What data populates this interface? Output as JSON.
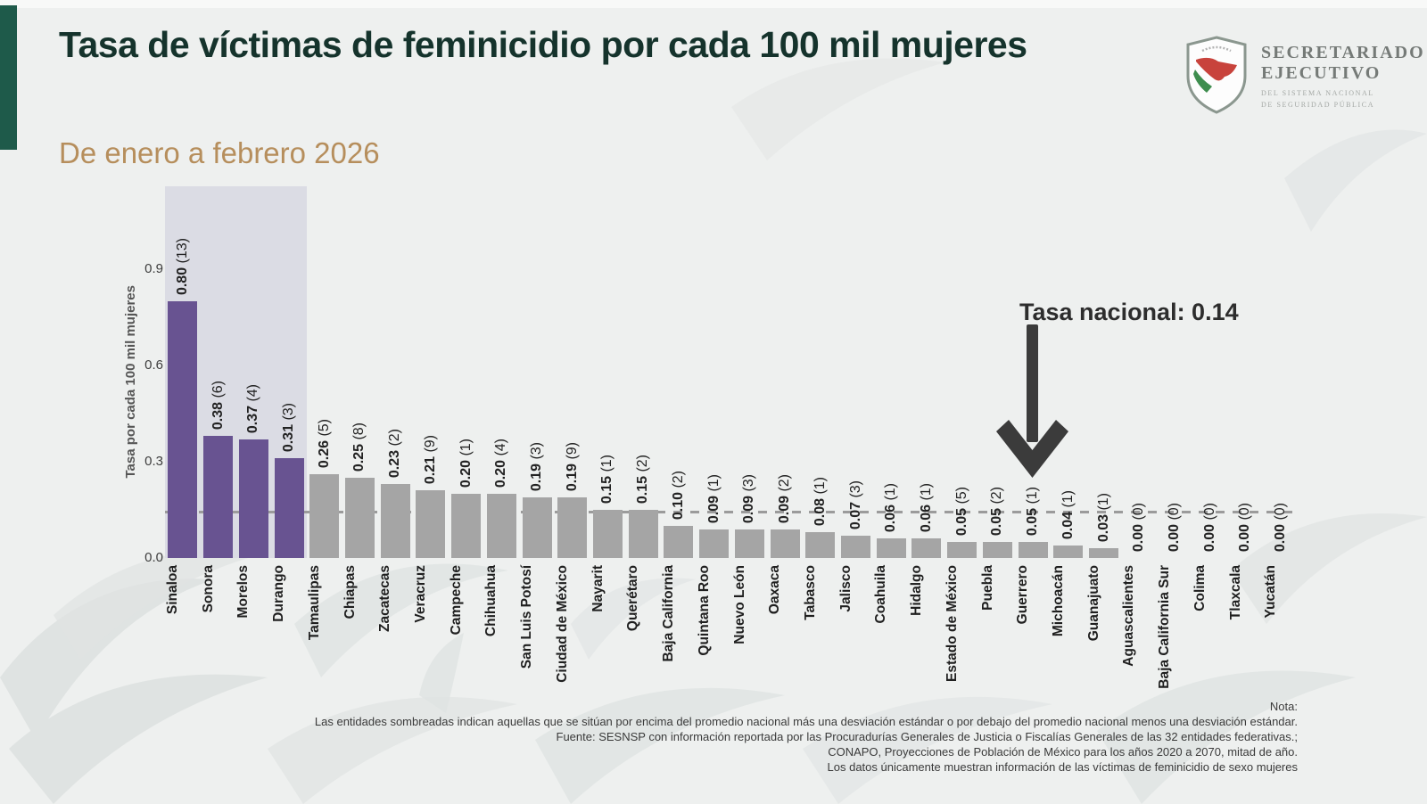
{
  "header": {
    "title": "Tasa de víctimas de feminicidio por cada 100 mil mujeres",
    "subtitle": "De enero a febrero 2026"
  },
  "logo": {
    "line1": "SECRETARIADO",
    "line2": "EJECUTIVO",
    "line3": "DEL SISTEMA NACIONAL",
    "line4": "DE SEGURIDAD PÚBLICA"
  },
  "chart_data": {
    "type": "bar",
    "title": "Tasa de víctimas de feminicidio por cada 100 mil mujeres",
    "subtitle": "De enero a febrero 2026",
    "ylabel": "Tasa por cada 100 mil mujeres",
    "ylim": [
      0,
      1.15
    ],
    "yticks": [
      "0.9",
      "0.6",
      "0.3",
      "0.0"
    ],
    "grid": false,
    "national_rate": 0.14,
    "national_rate_label": "Tasa nacional: 0.14",
    "highlight_color": "#685391",
    "bar_color": "#a5a5a5",
    "shaded_note": "Entidades sombreadas: por encima del promedio nacional más una desviación estándar",
    "bars": [
      {
        "state": "Sinaloa",
        "rate": "0.80",
        "count": 13,
        "highlighted": true
      },
      {
        "state": "Sonora",
        "rate": "0.38",
        "count": 6,
        "highlighted": true
      },
      {
        "state": "Morelos",
        "rate": "0.37",
        "count": 4,
        "highlighted": true
      },
      {
        "state": "Durango",
        "rate": "0.31",
        "count": 3,
        "highlighted": true
      },
      {
        "state": "Tamaulipas",
        "rate": "0.26",
        "count": 5,
        "highlighted": false
      },
      {
        "state": "Chiapas",
        "rate": "0.25",
        "count": 8,
        "highlighted": false
      },
      {
        "state": "Zacatecas",
        "rate": "0.23",
        "count": 2,
        "highlighted": false
      },
      {
        "state": "Veracruz",
        "rate": "0.21",
        "count": 9,
        "highlighted": false
      },
      {
        "state": "Campeche",
        "rate": "0.20",
        "count": 1,
        "highlighted": false
      },
      {
        "state": "Chihuahua",
        "rate": "0.20",
        "count": 4,
        "highlighted": false
      },
      {
        "state": "San Luis Potosí",
        "rate": "0.19",
        "count": 3,
        "highlighted": false
      },
      {
        "state": "Ciudad de México",
        "rate": "0.19",
        "count": 9,
        "highlighted": false
      },
      {
        "state": "Nayarit",
        "rate": "0.15",
        "count": 1,
        "highlighted": false
      },
      {
        "state": "Querétaro",
        "rate": "0.15",
        "count": 2,
        "highlighted": false
      },
      {
        "state": "Baja California",
        "rate": "0.10",
        "count": 2,
        "highlighted": false
      },
      {
        "state": "Quintana Roo",
        "rate": "0.09",
        "count": 1,
        "highlighted": false
      },
      {
        "state": "Nuevo León",
        "rate": "0.09",
        "count": 3,
        "highlighted": false
      },
      {
        "state": "Oaxaca",
        "rate": "0.09",
        "count": 2,
        "highlighted": false
      },
      {
        "state": "Tabasco",
        "rate": "0.08",
        "count": 1,
        "highlighted": false
      },
      {
        "state": "Jalisco",
        "rate": "0.07",
        "count": 3,
        "highlighted": false
      },
      {
        "state": "Coahuila",
        "rate": "0.06",
        "count": 1,
        "highlighted": false
      },
      {
        "state": "Hidalgo",
        "rate": "0.06",
        "count": 1,
        "highlighted": false
      },
      {
        "state": "Estado de México",
        "rate": "0.05",
        "count": 5,
        "highlighted": false
      },
      {
        "state": "Puebla",
        "rate": "0.05",
        "count": 2,
        "highlighted": false
      },
      {
        "state": "Guerrero",
        "rate": "0.05",
        "count": 1,
        "highlighted": false
      },
      {
        "state": "Michoacán",
        "rate": "0.04",
        "count": 1,
        "highlighted": false
      },
      {
        "state": "Guanajuato",
        "rate": "0.03",
        "count": 1,
        "highlighted": false
      },
      {
        "state": "Aguascalientes",
        "rate": "0.00",
        "count": 0,
        "highlighted": false
      },
      {
        "state": "Baja California Sur",
        "rate": "0.00",
        "count": 0,
        "highlighted": false
      },
      {
        "state": "Colima",
        "rate": "0.00",
        "count": 0,
        "highlighted": false
      },
      {
        "state": "Tlaxcala",
        "rate": "0.00",
        "count": 0,
        "highlighted": false
      },
      {
        "state": "Yucatán",
        "rate": "0.00",
        "count": 0,
        "highlighted": false
      }
    ]
  },
  "footer": {
    "lines": [
      "Nota:",
      "Las entidades sombreadas indican aquellas que se sitúan por encima del promedio nacional más una desviación estándar o por debajo del promedio nacional menos una desviación estándar.",
      "Fuente: SESNSP con información reportada por las Procuradurías Generales de Justicia o Fiscalías Generales de las 32 entidades federativas.;",
      "CONAPO, Proyecciones de Población de México para los años 2020 a 2070, mitad de año.",
      "Los datos únicamente muestran información de las víctimas de feminicidio de sexo mujeres"
    ]
  }
}
